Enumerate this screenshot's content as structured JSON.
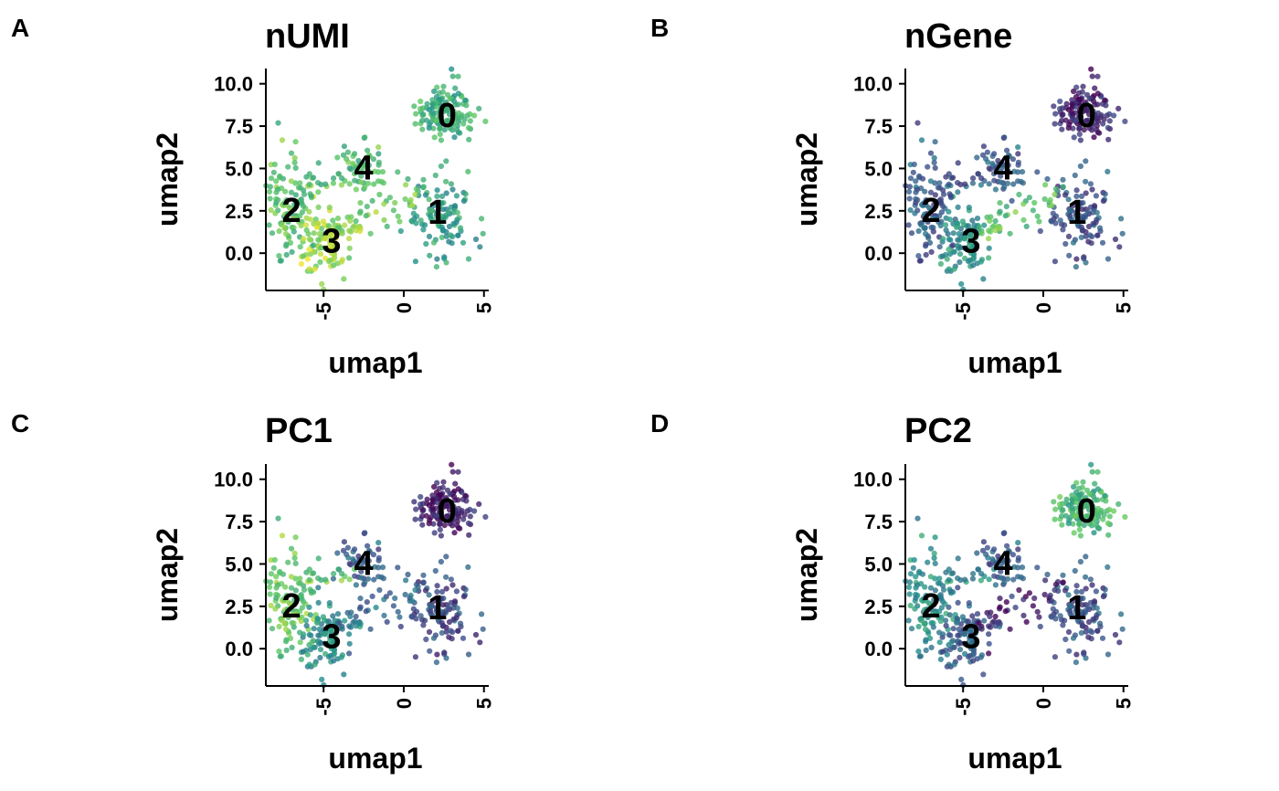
{
  "figure": {
    "colormap": [
      "#440154",
      "#3b528b",
      "#21918c",
      "#5ec962",
      "#fde725"
    ],
    "point_alpha": 0.8
  },
  "chart_data": [
    {
      "type": "scatter",
      "panel_label": "A",
      "title": "nUMI",
      "xlabel": "umap1",
      "ylabel": "umap2",
      "xlim": [
        -8.6,
        5.3
      ],
      "ylim": [
        -2.2,
        10.9
      ],
      "xticks": [
        -5,
        0,
        5
      ],
      "xtick_labels": [
        "-5",
        "0",
        "5"
      ],
      "yticks": [
        0.0,
        2.5,
        5.0,
        7.5,
        10.0
      ],
      "ytick_labels": [
        "0.0",
        "2.5",
        "5.0",
        "7.5",
        "10.0"
      ],
      "grid": false,
      "legend": false,
      "color_by": "nUMI",
      "cluster_labels": [
        {
          "text": "0",
          "x": 2.7,
          "y": 8.2
        },
        {
          "text": "1",
          "x": 2.1,
          "y": 2.5
        },
        {
          "text": "2",
          "x": -7.0,
          "y": 2.6
        },
        {
          "text": "3",
          "x": -4.5,
          "y": 0.8
        },
        {
          "text": "4",
          "x": -2.5,
          "y": 5.1
        }
      ],
      "cluster_colors": {
        "0": 0.62,
        "1": 0.55,
        "2": 0.72,
        "3": 0.85,
        "4": 0.7,
        "bridge": 0.78
      }
    },
    {
      "type": "scatter",
      "panel_label": "B",
      "title": "nGene",
      "xlabel": "umap1",
      "ylabel": "umap2",
      "xlim": [
        -8.6,
        5.3
      ],
      "ylim": [
        -2.2,
        10.9
      ],
      "xticks": [
        -5,
        0,
        5
      ],
      "xtick_labels": [
        "-5",
        "0",
        "5"
      ],
      "yticks": [
        0.0,
        2.5,
        5.0,
        7.5,
        10.0
      ],
      "ytick_labels": [
        "0.0",
        "2.5",
        "5.0",
        "7.5",
        "10.0"
      ],
      "grid": false,
      "legend": false,
      "color_by": "nGene",
      "cluster_labels": [
        {
          "text": "0",
          "x": 2.7,
          "y": 8.2
        },
        {
          "text": "1",
          "x": 2.1,
          "y": 2.5
        },
        {
          "text": "2",
          "x": -7.0,
          "y": 2.6
        },
        {
          "text": "3",
          "x": -4.5,
          "y": 0.8
        },
        {
          "text": "4",
          "x": -2.5,
          "y": 5.1
        }
      ],
      "cluster_colors": {
        "0": 0.1,
        "1": 0.25,
        "2": 0.3,
        "3": 0.5,
        "4": 0.3,
        "bridge": 0.72
      }
    },
    {
      "type": "scatter",
      "panel_label": "C",
      "title": "PC1",
      "xlabel": "umap1",
      "ylabel": "umap2",
      "xlim": [
        -8.6,
        5.3
      ],
      "ylim": [
        -2.2,
        10.9
      ],
      "xticks": [
        -5,
        0,
        5
      ],
      "xtick_labels": [
        "-5",
        "0",
        "5"
      ],
      "yticks": [
        0.0,
        2.5,
        5.0,
        7.5,
        10.0
      ],
      "ytick_labels": [
        "0.0",
        "2.5",
        "5.0",
        "7.5",
        "10.0"
      ],
      "grid": false,
      "legend": false,
      "color_by": "PC1",
      "cluster_labels": [
        {
          "text": "0",
          "x": 2.7,
          "y": 8.2
        },
        {
          "text": "1",
          "x": 2.1,
          "y": 2.5
        },
        {
          "text": "2",
          "x": -7.0,
          "y": 2.6
        },
        {
          "text": "3",
          "x": -4.5,
          "y": 0.8
        },
        {
          "text": "4",
          "x": -2.5,
          "y": 5.1
        }
      ],
      "cluster_colors": {
        "0": 0.08,
        "1": 0.22,
        "2": 0.75,
        "3": 0.5,
        "4": 0.3,
        "bridge": 0.35
      }
    },
    {
      "type": "scatter",
      "panel_label": "D",
      "title": "PC2",
      "xlabel": "umap1",
      "ylabel": "umap2",
      "xlim": [
        -8.6,
        5.3
      ],
      "ylim": [
        -2.2,
        10.9
      ],
      "xticks": [
        -5,
        0,
        5
      ],
      "xtick_labels": [
        "-5",
        "0",
        "5"
      ],
      "yticks": [
        0.0,
        2.5,
        5.0,
        7.5,
        10.0
      ],
      "ytick_labels": [
        "0.0",
        "2.5",
        "5.0",
        "7.5",
        "10.0"
      ],
      "grid": false,
      "legend": false,
      "color_by": "PC2",
      "cluster_labels": [
        {
          "text": "0",
          "x": 2.7,
          "y": 8.2
        },
        {
          "text": "1",
          "x": 2.1,
          "y": 2.5
        },
        {
          "text": "2",
          "x": -7.0,
          "y": 2.6
        },
        {
          "text": "3",
          "x": -4.5,
          "y": 0.8
        },
        {
          "text": "4",
          "x": -2.5,
          "y": 5.1
        }
      ],
      "cluster_colors": {
        "0": 0.65,
        "1": 0.25,
        "2": 0.5,
        "3": 0.3,
        "4": 0.3,
        "bridge": 0.1
      }
    }
  ]
}
